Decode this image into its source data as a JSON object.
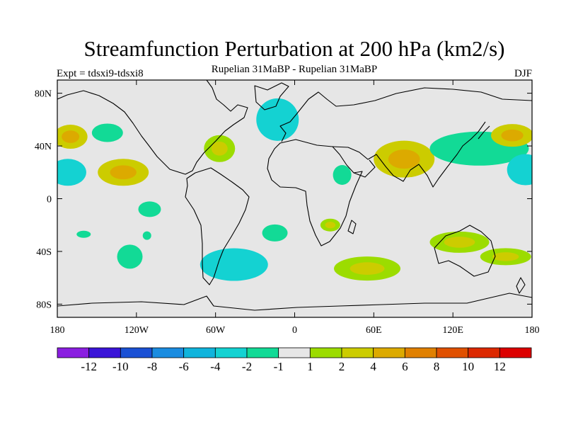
{
  "chart_data": {
    "type": "map",
    "title": "Streamfunction Perturbation at 200 hPa (km2/s)",
    "left_label": "Expt = tdsxi9-tdsxi8",
    "center_label": "Rupelian  31MaBP - Rupelian  31MaBP",
    "right_label": "DJF",
    "lon_range": [
      -180,
      180
    ],
    "lat_range": [
      -90,
      90
    ],
    "x_ticks": [
      {
        "value": -180,
        "label": "180"
      },
      {
        "value": -120,
        "label": "120W"
      },
      {
        "value": -60,
        "label": "60W"
      },
      {
        "value": 0,
        "label": "0"
      },
      {
        "value": 60,
        "label": "60E"
      },
      {
        "value": 120,
        "label": "120E"
      },
      {
        "value": 180,
        "label": "180"
      }
    ],
    "y_ticks": [
      {
        "value": 80,
        "label": "80N"
      },
      {
        "value": 40,
        "label": "40N"
      },
      {
        "value": 0,
        "label": "0"
      },
      {
        "value": -40,
        "label": "40S"
      },
      {
        "value": -80,
        "label": "80S"
      }
    ],
    "colorbar": {
      "colors": [
        "#8a1ee0",
        "#3a14d8",
        "#1a50d4",
        "#1a8ce0",
        "#10b4dc",
        "#14d2d2",
        "#12da96",
        "#e6e6e6",
        "#9cdc00",
        "#cccc00",
        "#dcaa00",
        "#e08000",
        "#e05000",
        "#dc2800",
        "#dc0000"
      ],
      "labels": [
        "-12",
        "-10",
        "-8",
        "-6",
        "-4",
        "-2",
        "-1",
        "1",
        "2",
        "4",
        "6",
        "8",
        "10",
        "12"
      ]
    },
    "contour_blobs": [
      {
        "region": "North Pacific west",
        "lon": -170,
        "lat": 47,
        "level_min": 2,
        "level_max": 4
      },
      {
        "region": "North Pacific tropics west",
        "lon": -172,
        "lat": 20,
        "level_min": -4,
        "level_max": -2
      },
      {
        "region": "North Pacific east",
        "lon": -142,
        "lat": 50,
        "level_min": -2,
        "level_max": -1
      },
      {
        "region": "Central tropical Pacific",
        "lon": -130,
        "lat": 20,
        "level_min": 2,
        "level_max": 4
      },
      {
        "region": "East Pacific",
        "lon": -110,
        "lat": -8,
        "level_min": -2,
        "level_max": -1
      },
      {
        "region": "South Pacific small",
        "lon": -160,
        "lat": -27,
        "level_min": -2,
        "level_max": -1
      },
      {
        "region": "South Pacific small 2",
        "lon": -112,
        "lat": -28,
        "level_min": -2,
        "level_max": -1
      },
      {
        "region": "South Pacific",
        "lon": -125,
        "lat": -44,
        "level_min": -2,
        "level_max": -1
      },
      {
        "region": "North Atlantic west",
        "lon": -57,
        "lat": 38,
        "level_min": 1,
        "level_max": 2
      },
      {
        "region": "North Atlantic",
        "lon": -13,
        "lat": 60,
        "level_min": -4,
        "level_max": -2
      },
      {
        "region": "South Atlantic",
        "lon": -46,
        "lat": -50,
        "level_min": -4,
        "level_max": -1
      },
      {
        "region": "South Atlantic east",
        "lon": -15,
        "lat": -26,
        "level_min": -2,
        "level_max": -1
      },
      {
        "region": "East Africa",
        "lon": 36,
        "lat": 18,
        "level_min": -2,
        "level_max": -1
      },
      {
        "region": "Southern Africa",
        "lon": 27,
        "lat": -20,
        "level_min": 1,
        "level_max": 2
      },
      {
        "region": "Southern Indian Ocean",
        "lon": 55,
        "lat": -53,
        "level_min": 1,
        "level_max": 2
      },
      {
        "region": "South Asia",
        "lon": 83,
        "lat": 30,
        "level_min": 2,
        "level_max": 4
      },
      {
        "region": "East Asia to NW Pacific",
        "lon": 140,
        "lat": 38,
        "level_min": -2,
        "level_max": -1
      },
      {
        "region": "NW Pacific",
        "lon": 165,
        "lat": 48,
        "level_min": 2,
        "level_max": 4
      },
      {
        "region": "Western Pacific tropics",
        "lon": 175,
        "lat": 22,
        "level_min": -4,
        "level_max": -2
      },
      {
        "region": "Australia",
        "lon": 125,
        "lat": -33,
        "level_min": 1,
        "level_max": 2
      },
      {
        "region": "Tasman Sea",
        "lon": 160,
        "lat": -44,
        "level_min": 1,
        "level_max": 2
      }
    ]
  }
}
